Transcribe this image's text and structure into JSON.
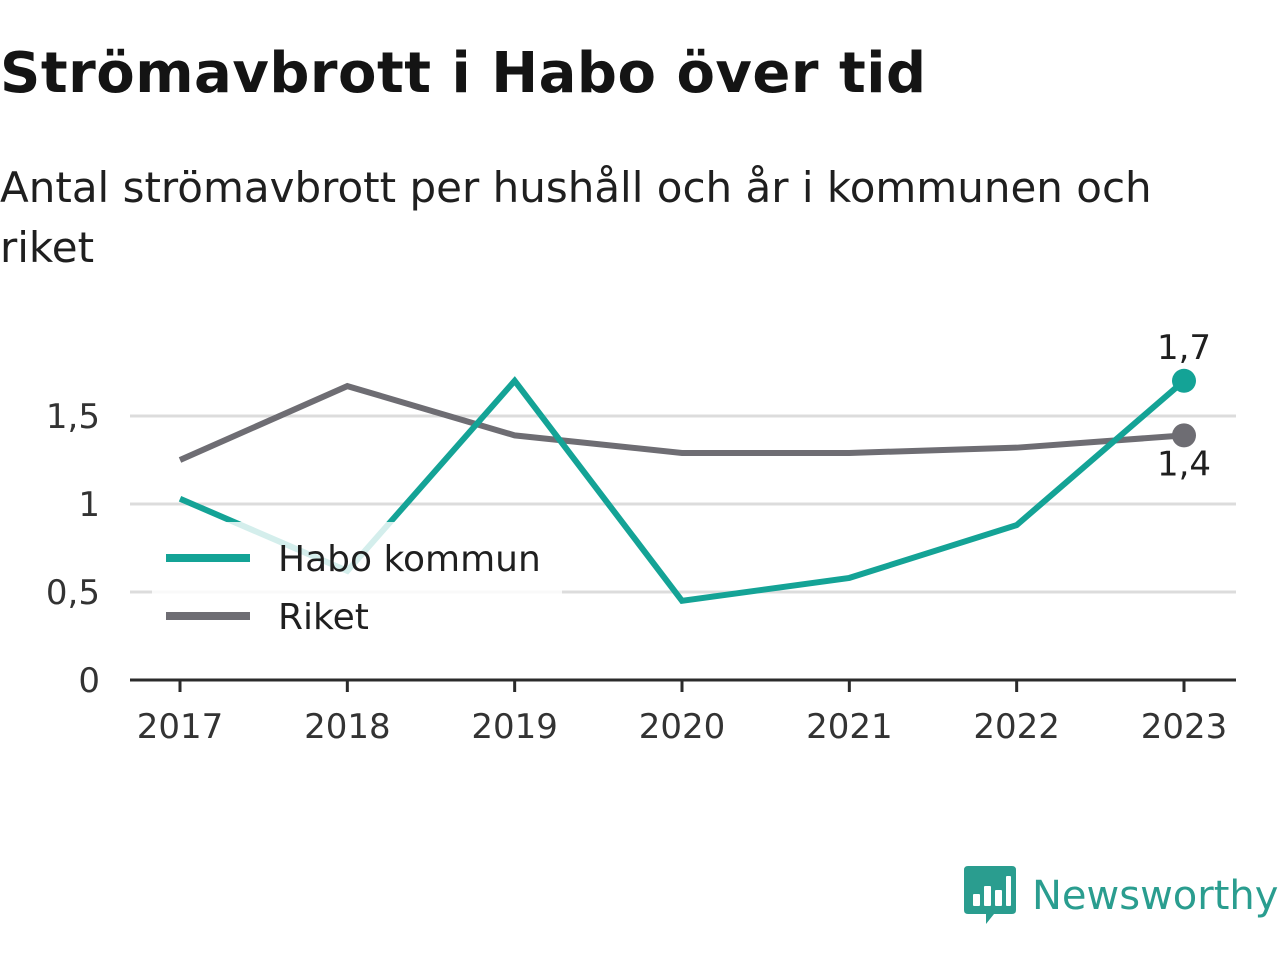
{
  "chart_data": {
    "type": "line",
    "title": "Strömavbrott i Habo över tid",
    "subtitle": "Antal strömavbrott per hushåll och år i kommunen och riket",
    "categories": [
      "2017",
      "2018",
      "2019",
      "2020",
      "2021",
      "2022",
      "2023"
    ],
    "series": [
      {
        "name": "Habo kommun",
        "color": "#14a396",
        "values": [
          1.03,
          0.62,
          1.7,
          0.45,
          0.58,
          0.88,
          1.7
        ],
        "end_label": "1,7"
      },
      {
        "name": "Riket",
        "color": "#6e6d73",
        "values": [
          1.25,
          1.67,
          1.39,
          1.29,
          1.29,
          1.32,
          1.39
        ],
        "end_label": "1,4"
      }
    ],
    "y_ticks": [
      0,
      0.5,
      1,
      1.5
    ],
    "y_tick_labels": [
      "0",
      "0,5",
      "1",
      "1,5"
    ],
    "ylim": [
      0,
      1.8
    ],
    "grid": true,
    "legend_placement": "bottom-left inside plot"
  },
  "brand": {
    "name": "Newsworthy",
    "color": "#2a9d8f",
    "icon": "newsworthy-logo-icon"
  }
}
